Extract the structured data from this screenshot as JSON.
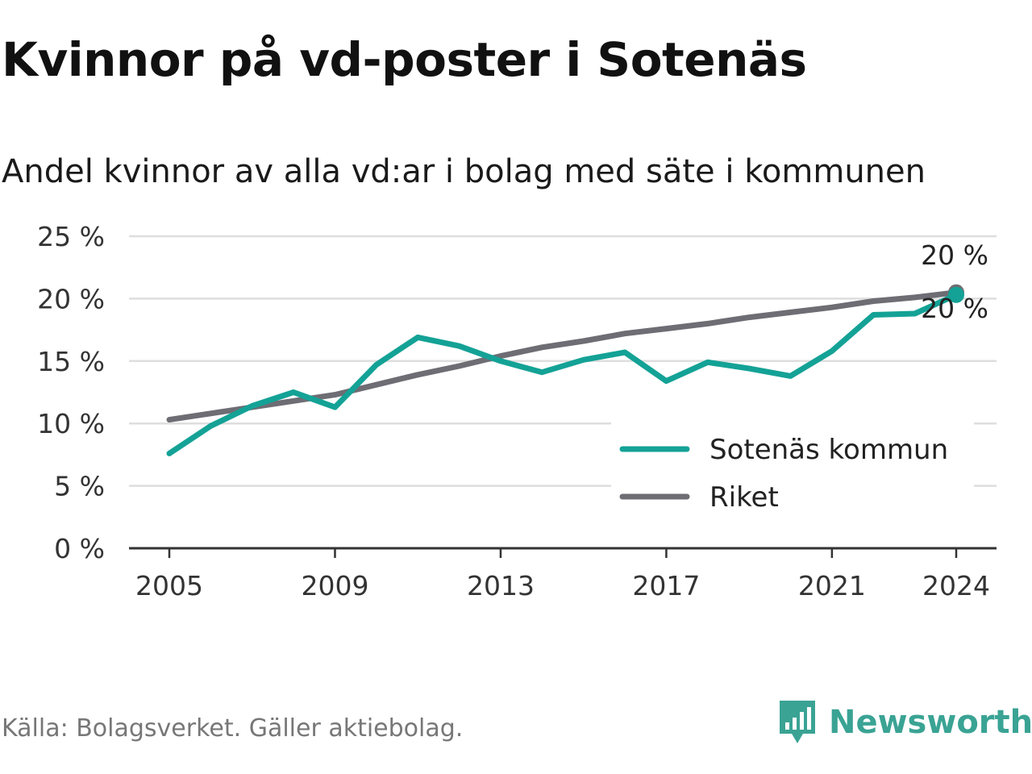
{
  "chart_data": {
    "type": "line",
    "title": "Kvinnor på vd-poster i Sotenäs",
    "subtitle": "Andel kvinnor av alla vd:ar i bolag med säte i kommunen",
    "x": [
      2005,
      2006,
      2007,
      2008,
      2009,
      2010,
      2011,
      2012,
      2013,
      2014,
      2015,
      2016,
      2017,
      2018,
      2019,
      2020,
      2021,
      2022,
      2023,
      2024
    ],
    "x_ticks": [
      2005,
      2009,
      2013,
      2017,
      2021,
      2024
    ],
    "y_ticks": [
      0,
      5,
      10,
      15,
      20,
      25
    ],
    "y_tick_labels": [
      "0 %",
      "5 %",
      "10 %",
      "15 %",
      "20 %",
      "25 %"
    ],
    "ylim": [
      0,
      25
    ],
    "xlim": [
      2004,
      2025
    ],
    "grid": true,
    "legend_position": "bottom-right",
    "series": [
      {
        "name": "Sotenäs kommun",
        "color": "#14a296",
        "values": [
          7.6,
          9.8,
          11.4,
          12.5,
          11.3,
          14.7,
          16.9,
          16.2,
          15.0,
          14.1,
          15.1,
          15.7,
          13.4,
          14.9,
          14.4,
          13.8,
          15.8,
          18.7,
          18.8,
          20.3
        ],
        "end_label": "20 %"
      },
      {
        "name": "Riket",
        "color": "#6e6d74",
        "values": [
          10.3,
          10.8,
          11.3,
          11.8,
          12.3,
          13.1,
          13.9,
          14.6,
          15.4,
          16.1,
          16.6,
          17.2,
          17.6,
          18.0,
          18.5,
          18.9,
          19.3,
          19.8,
          20.1,
          20.5
        ],
        "end_label": "20 %"
      }
    ]
  },
  "footer": {
    "source": "Källa: Bolagsverket. Gäller aktiebolag.",
    "brand": "Newsworthy"
  }
}
